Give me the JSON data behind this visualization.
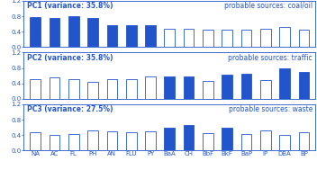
{
  "categories": [
    "NA",
    "AC",
    "FL",
    "PH",
    "AN",
    "FLU",
    "PY",
    "BaA",
    "CH",
    "BbF",
    "BkF",
    "BaP",
    "IP",
    "DBA",
    "BP"
  ],
  "pc1": {
    "values": [
      0.77,
      0.75,
      0.79,
      0.76,
      0.57,
      0.57,
      0.57,
      0.48,
      0.48,
      0.46,
      0.44,
      0.46,
      0.48,
      0.51,
      0.46
    ],
    "filled": [
      true,
      true,
      true,
      true,
      true,
      true,
      true,
      false,
      false,
      false,
      false,
      false,
      false,
      false,
      false
    ],
    "title": "PC1 (variance: 35.8%)",
    "source": "probable sources: coal/oil"
  },
  "pc2": {
    "values": [
      0.5,
      0.55,
      0.5,
      0.45,
      0.5,
      0.5,
      0.57,
      0.57,
      0.57,
      0.47,
      0.63,
      0.65,
      0.48,
      0.78,
      0.7
    ],
    "filled": [
      false,
      false,
      false,
      false,
      false,
      false,
      false,
      true,
      true,
      false,
      true,
      true,
      false,
      true,
      true
    ],
    "title": "PC2 (variance: 35.8%)",
    "source": "probable sources: traffic"
  },
  "pc3": {
    "values": [
      0.47,
      0.4,
      0.43,
      0.52,
      0.5,
      0.48,
      0.5,
      0.6,
      0.65,
      0.45,
      0.6,
      0.43,
      0.52,
      0.4,
      0.48
    ],
    "filled": [
      false,
      false,
      false,
      false,
      false,
      false,
      false,
      true,
      true,
      false,
      true,
      false,
      false,
      false,
      false
    ],
    "title": "PC3 (variance: 27.5%)",
    "source": "probable sources: waste"
  },
  "ylim": [
    0,
    1.2
  ],
  "yticks": [
    0.0,
    0.4,
    0.8,
    1.2
  ],
  "bar_color_filled": "#2255cc",
  "bar_color_empty": "#ffffff",
  "bar_edge_color": "#2255cc",
  "text_color": "#2255cc",
  "bg_color": "#ffffff",
  "title_fontsize": 5.5,
  "label_fontsize": 5.0,
  "bar_width": 0.55,
  "linewidth": 0.6
}
